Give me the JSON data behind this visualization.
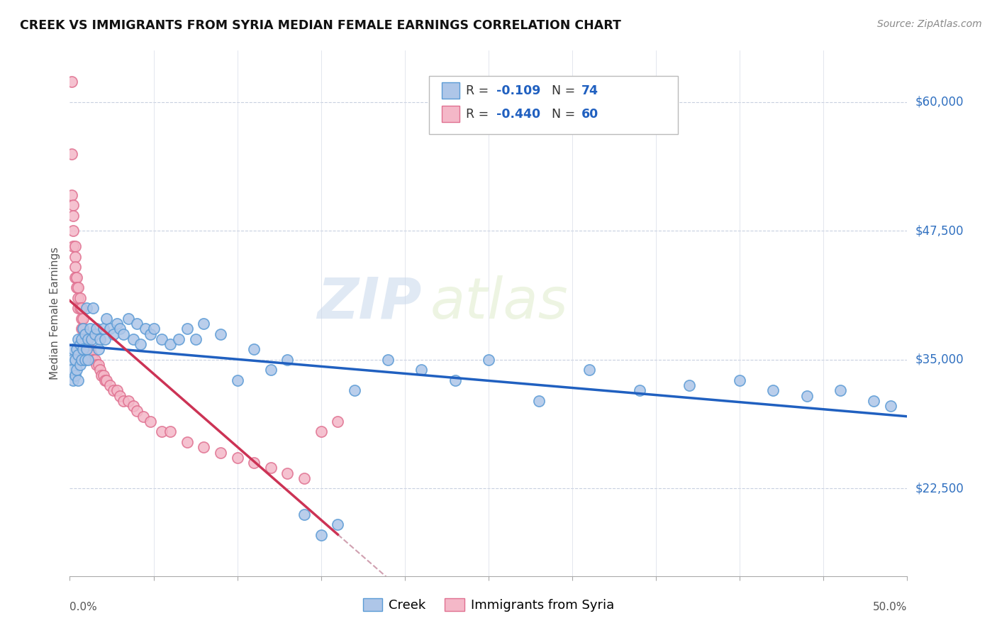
{
  "title": "CREEK VS IMMIGRANTS FROM SYRIA MEDIAN FEMALE EARNINGS CORRELATION CHART",
  "source": "Source: ZipAtlas.com",
  "ylabel": "Median Female Earnings",
  "yticks": [
    22500,
    35000,
    47500,
    60000
  ],
  "ytick_labels": [
    "$22,500",
    "$35,000",
    "$47,500",
    "$60,000"
  ],
  "xlim": [
    0.0,
    0.5
  ],
  "ylim": [
    14000,
    65000
  ],
  "creek_color": "#aec6e8",
  "creek_edge_color": "#5b9bd5",
  "syria_color": "#f4b8c8",
  "syria_edge_color": "#e07090",
  "trend_creek_color": "#2060c0",
  "trend_syria_color": "#cc3355",
  "trend_dashed_color": "#d0a0b0",
  "legend_r_color": "#2060c0",
  "creek_R": -0.109,
  "creek_N": 74,
  "syria_R": -0.44,
  "syria_N": 60,
  "watermark_zip": "ZIP",
  "watermark_atlas": "atlas",
  "creek_x": [
    0.001,
    0.001,
    0.002,
    0.002,
    0.003,
    0.003,
    0.004,
    0.004,
    0.005,
    0.005,
    0.005,
    0.006,
    0.006,
    0.007,
    0.007,
    0.008,
    0.008,
    0.009,
    0.009,
    0.01,
    0.01,
    0.011,
    0.011,
    0.012,
    0.013,
    0.014,
    0.015,
    0.016,
    0.017,
    0.018,
    0.02,
    0.021,
    0.022,
    0.024,
    0.026,
    0.028,
    0.03,
    0.032,
    0.035,
    0.038,
    0.04,
    0.042,
    0.045,
    0.048,
    0.05,
    0.055,
    0.06,
    0.065,
    0.07,
    0.075,
    0.08,
    0.09,
    0.1,
    0.11,
    0.12,
    0.13,
    0.14,
    0.15,
    0.16,
    0.17,
    0.19,
    0.21,
    0.23,
    0.25,
    0.28,
    0.31,
    0.34,
    0.37,
    0.4,
    0.42,
    0.44,
    0.46,
    0.48,
    0.49
  ],
  "creek_y": [
    35000,
    34000,
    36000,
    33000,
    35000,
    33500,
    36000,
    34000,
    37000,
    35500,
    33000,
    36500,
    34500,
    37000,
    35000,
    38000,
    36000,
    37500,
    35000,
    40000,
    36000,
    37000,
    35000,
    38000,
    37000,
    40000,
    37500,
    38000,
    36000,
    37000,
    38000,
    37000,
    39000,
    38000,
    37500,
    38500,
    38000,
    37500,
    39000,
    37000,
    38500,
    36500,
    38000,
    37500,
    38000,
    37000,
    36500,
    37000,
    38000,
    37000,
    38500,
    37500,
    33000,
    36000,
    34000,
    35000,
    20000,
    18000,
    19000,
    32000,
    35000,
    34000,
    33000,
    35000,
    31000,
    34000,
    32000,
    32500,
    33000,
    32000,
    31500,
    32000,
    31000,
    30500
  ],
  "syria_x": [
    0.001,
    0.001,
    0.001,
    0.002,
    0.002,
    0.002,
    0.002,
    0.003,
    0.003,
    0.003,
    0.003,
    0.004,
    0.004,
    0.005,
    0.005,
    0.005,
    0.006,
    0.006,
    0.007,
    0.007,
    0.007,
    0.008,
    0.008,
    0.009,
    0.01,
    0.01,
    0.011,
    0.012,
    0.013,
    0.014,
    0.015,
    0.016,
    0.017,
    0.018,
    0.019,
    0.02,
    0.021,
    0.022,
    0.024,
    0.026,
    0.028,
    0.03,
    0.032,
    0.035,
    0.038,
    0.04,
    0.044,
    0.048,
    0.055,
    0.06,
    0.07,
    0.08,
    0.09,
    0.1,
    0.11,
    0.12,
    0.13,
    0.14,
    0.15,
    0.16
  ],
  "syria_y": [
    62000,
    55000,
    51000,
    50000,
    49000,
    47500,
    46000,
    46000,
    45000,
    44000,
    43000,
    43000,
    42000,
    42000,
    41000,
    40000,
    41000,
    40000,
    40000,
    39000,
    38000,
    39000,
    38000,
    37000,
    37000,
    36500,
    36000,
    36000,
    35500,
    35000,
    35000,
    34500,
    34500,
    34000,
    33500,
    33500,
    33000,
    33000,
    32500,
    32000,
    32000,
    31500,
    31000,
    31000,
    30500,
    30000,
    29500,
    29000,
    28000,
    28000,
    27000,
    26500,
    26000,
    25500,
    25000,
    24500,
    24000,
    23500,
    28000,
    29000
  ]
}
